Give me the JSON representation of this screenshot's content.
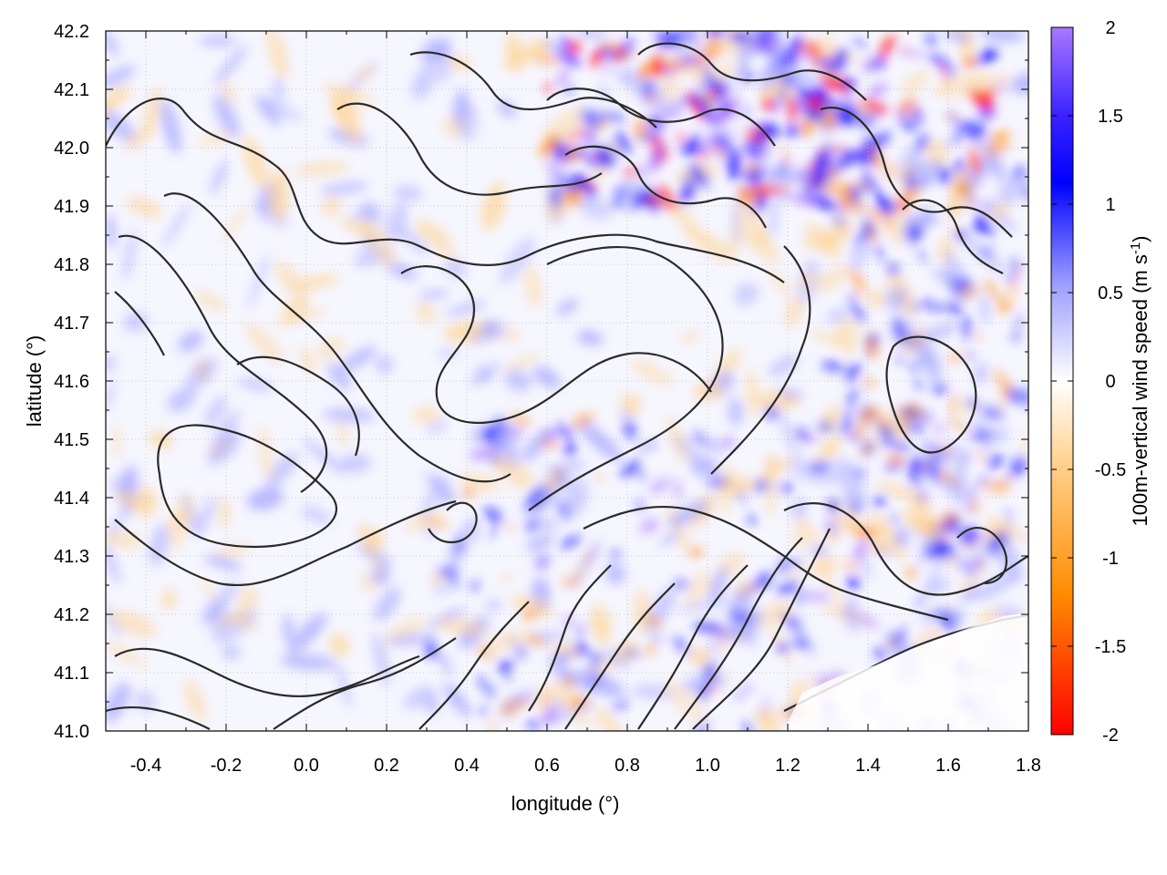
{
  "chart_data": {
    "type": "heatmap",
    "title": "",
    "xlabel": "longitude (°)",
    "ylabel": "latitude (°)",
    "xlim": [
      -0.5,
      1.8
    ],
    "ylim": [
      41.0,
      42.2
    ],
    "x_ticks": [
      "-0.4",
      "-0.2",
      "0.0",
      "0.2",
      "0.4",
      "0.6",
      "0.8",
      "1.0",
      "1.2",
      "1.4",
      "1.6",
      "1.8"
    ],
    "x_tick_values": [
      -0.4,
      -0.2,
      0.0,
      0.2,
      0.4,
      0.6,
      0.8,
      1.0,
      1.2,
      1.4,
      1.6,
      1.8
    ],
    "y_ticks": [
      "41.0",
      "41.1",
      "41.2",
      "41.3",
      "41.4",
      "41.5",
      "41.6",
      "41.7",
      "41.8",
      "41.9",
      "42.0",
      "42.1",
      "42.2"
    ],
    "y_tick_values": [
      41.0,
      41.1,
      41.2,
      41.3,
      41.4,
      41.5,
      41.6,
      41.7,
      41.8,
      41.9,
      42.0,
      42.1,
      42.2
    ],
    "colorbar": {
      "label_main": "100m-vertical wind speed (m s",
      "label_sup": "-1",
      "label_end": ")",
      "range": [
        -2,
        2
      ],
      "ticks": [
        "2",
        "1.5",
        "1",
        "0.5",
        "0",
        "-0.5",
        "-1",
        "-1.5",
        "-2"
      ],
      "tick_values": [
        2,
        1.5,
        1,
        0.5,
        0,
        -0.5,
        -1,
        -1.5,
        -2
      ],
      "colors": [
        "#ff0000",
        "#ff8c00",
        "#ffd08a",
        "#ffffff",
        "#9a9aff",
        "#0000ff",
        "#a060ff"
      ]
    },
    "grid": "dotted",
    "legend": "none",
    "overlay": "topography contours (black lines)",
    "field_summary": {
      "strong_updrafts_region": [
        [
          0.6,
          1.4
        ],
        [
          41.9,
          42.2
        ]
      ],
      "coastal_smooth_region": [
        [
          1.0,
          1.8
        ],
        [
          41.0,
          41.2
        ]
      ]
    }
  }
}
